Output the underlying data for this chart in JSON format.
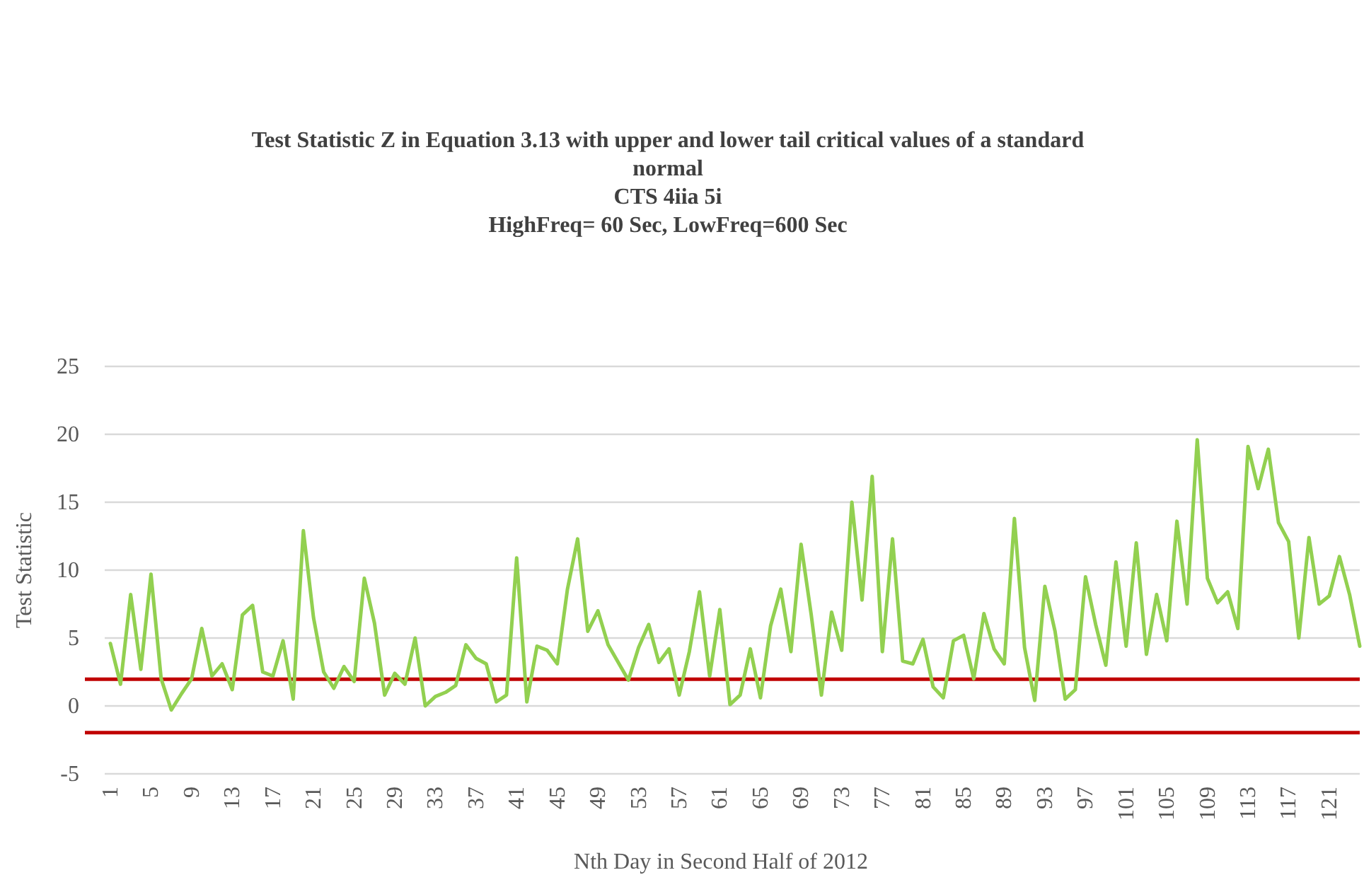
{
  "chart_data": {
    "type": "line",
    "title": "Test Statistic Z in Equation 3.13 with upper and lower tail critical values of a standard normal",
    "subtitle": "CTS 4iia 5i",
    "annotations": [
      "HighFreq= 60 Sec, LowFreq=600 Sec"
    ],
    "xlabel": "Nth Day in Second Half of 2012",
    "ylabel": "Test Statistic",
    "categories": [
      "1",
      null,
      null,
      null,
      "5",
      null,
      null,
      null,
      "9",
      null,
      null,
      null,
      "13",
      null,
      null,
      null,
      "17",
      null,
      null,
      null,
      "21",
      null,
      null,
      null,
      "25",
      null,
      null,
      null,
      "29",
      null,
      null,
      null,
      "33",
      null,
      null,
      null,
      "37",
      null,
      null,
      null,
      "41",
      null,
      null,
      null,
      "45",
      null,
      null,
      null,
      "49",
      null,
      null,
      null,
      "53",
      null,
      null,
      null,
      "57",
      null,
      null,
      null,
      "61",
      null,
      null,
      null,
      "65",
      null,
      null,
      null,
      "69",
      null,
      null,
      null,
      "73",
      null,
      null,
      null,
      "77",
      null,
      null,
      null,
      "81",
      null,
      null,
      null,
      "85",
      null,
      null,
      null,
      "89",
      null,
      null,
      null,
      "93",
      null,
      null,
      null,
      "97",
      null,
      null,
      null,
      "101",
      null,
      null,
      null,
      "105",
      null,
      null,
      null,
      "109",
      null,
      null,
      null,
      "113",
      null,
      null,
      null,
      "117",
      null,
      null,
      null,
      "121",
      null,
      null,
      null
    ],
    "series": [
      {
        "color": "#92d050",
        "values": [
          4.6,
          1.6,
          8.2,
          2.7,
          9.7,
          2.0,
          -0.3,
          0.9,
          2.0,
          5.7,
          2.2,
          3.1,
          1.2,
          6.7,
          7.4,
          2.5,
          2.2,
          4.8,
          0.5,
          12.9,
          6.5,
          2.5,
          1.3,
          2.9,
          1.8,
          9.4,
          6.1,
          0.8,
          2.4,
          1.6,
          5.0,
          0.0,
          0.7,
          1.0,
          1.5,
          4.5,
          3.5,
          3.1,
          0.3,
          0.8,
          10.9,
          0.3,
          4.4,
          4.1,
          3.1,
          8.6,
          12.3,
          5.5,
          7.0,
          4.5,
          3.2,
          1.9,
          4.3,
          6.0,
          3.2,
          4.2,
          0.8,
          4.0,
          8.4,
          2.2,
          7.1,
          0.1,
          0.8,
          4.2,
          0.6,
          5.9,
          8.6,
          4.0,
          11.9,
          6.7,
          0.8,
          6.9,
          4.1,
          15.0,
          7.8,
          16.9,
          4.0,
          12.3,
          3.3,
          3.1,
          4.9,
          1.4,
          0.6,
          4.8,
          5.2,
          2.0,
          6.8,
          4.2,
          3.1,
          13.8,
          4.3,
          0.4,
          8.8,
          5.5,
          0.5,
          1.2,
          9.5,
          6.0,
          3.0,
          10.6,
          4.4,
          12.0,
          3.8,
          8.2,
          4.8,
          13.6,
          7.5,
          19.6,
          9.4,
          7.6,
          8.4,
          5.7,
          19.1,
          16.0,
          18.9,
          13.5,
          12.1,
          5.0,
          12.4,
          7.5,
          8.1,
          11.0,
          8.2,
          4.4
        ]
      }
    ],
    "ylim": [
      -5,
      25
    ],
    "yticks": [
      -5,
      0,
      5,
      10,
      15,
      20,
      25
    ],
    "grid": "y",
    "marker": "none",
    "line_style": "solid",
    "ref_lines": [
      {
        "axis": "y",
        "value": 1.96,
        "color": "#c00000"
      },
      {
        "axis": "y",
        "value": -1.96,
        "color": "#c00000"
      }
    ]
  }
}
